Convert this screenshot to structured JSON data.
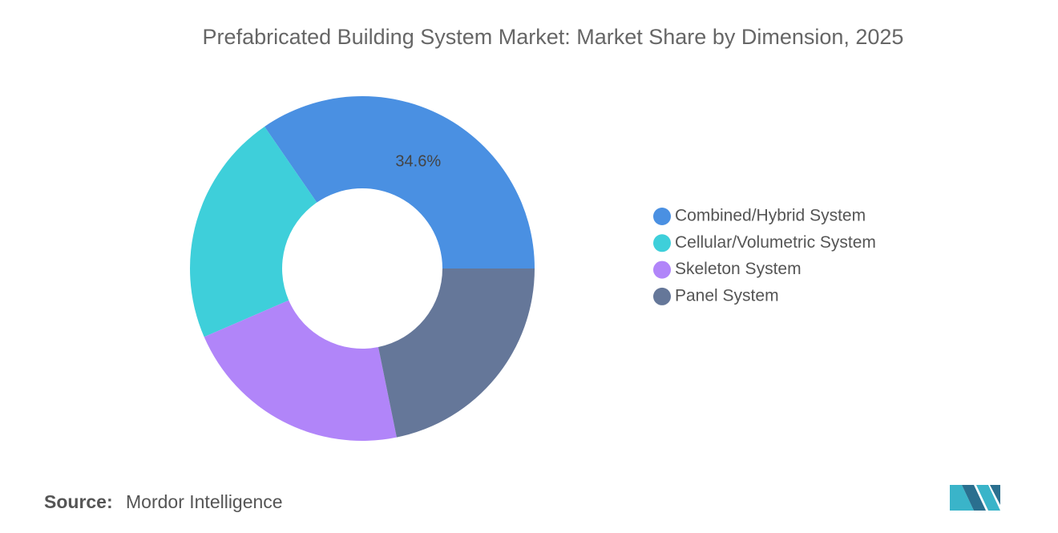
{
  "chart_data": {
    "type": "donut",
    "title": "Prefabricated Building System Market: Market Share by Dimension, 2025",
    "categories": [
      "Combined/Hybrid System",
      "Cellular/Volumetric System",
      "Skeleton System",
      "Panel System"
    ],
    "values": [
      34.6,
      21.9,
      21.7,
      21.8
    ],
    "value_labels": [
      "34.6%",
      null,
      null,
      null
    ],
    "colors": [
      "#4a90e2",
      "#3ecfda",
      "#b185f9",
      "#657799"
    ],
    "legend": "right",
    "source_label": "Source:",
    "source": "Mordor Intelligence"
  }
}
